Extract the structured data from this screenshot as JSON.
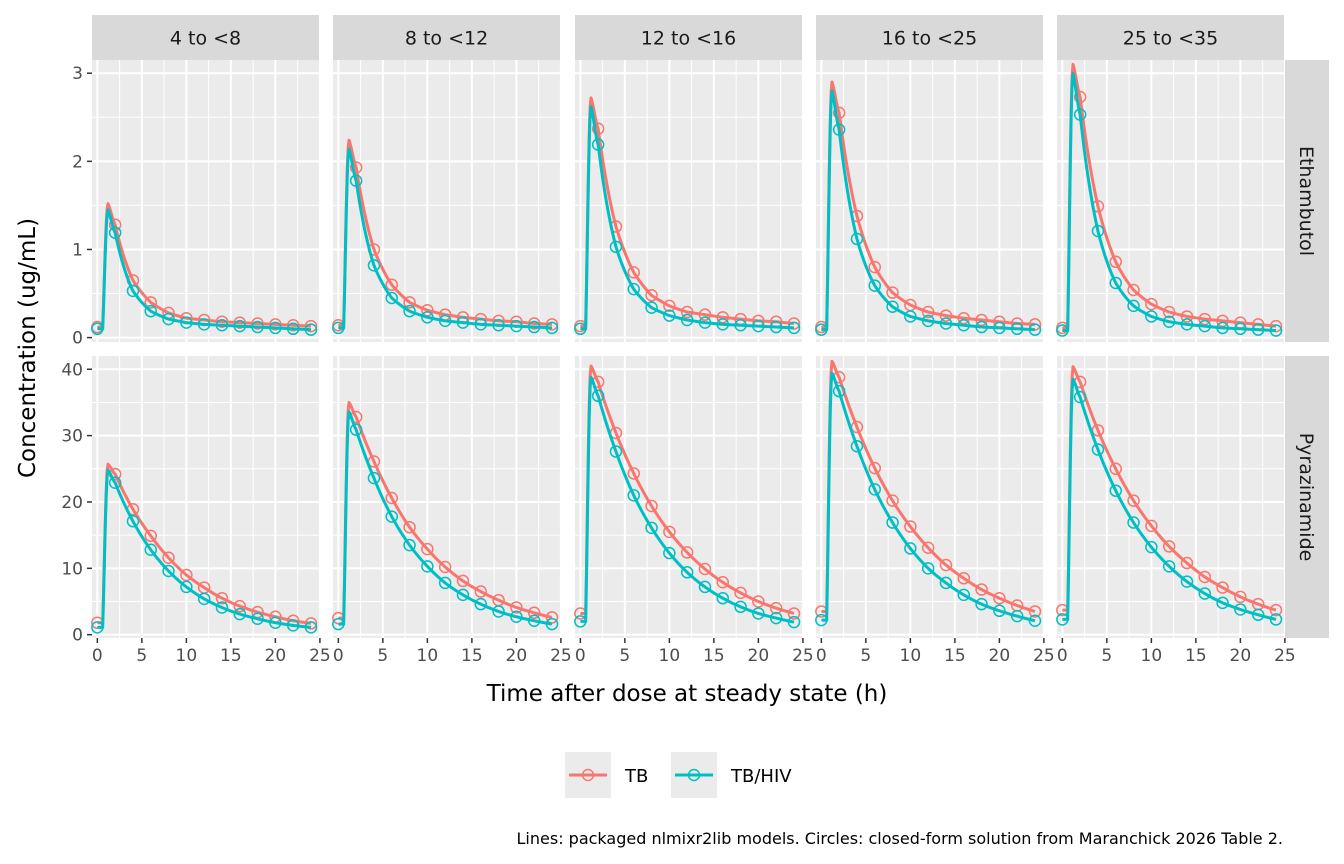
{
  "chart_data": {
    "type": "line",
    "xlabel": "Time after dose at steady state (h)",
    "ylabel": "Concentration (ug/mL)",
    "caption": "Lines: packaged nlmixr2lib models. Circles: closed-form solution from Maranchick 2026 Table 2.",
    "columns": [
      "4 to <8",
      "8 to <12",
      "12 to <16",
      "16 to <25",
      "25 to <35"
    ],
    "rows": [
      "Ethambutol",
      "Pyrazinamide"
    ],
    "xlim": [
      0,
      25
    ],
    "x_ticks": [
      0,
      5,
      10,
      15,
      20,
      25
    ],
    "y_ticks": {
      "Ethambutol": [
        0,
        1,
        2,
        3
      ],
      "Pyrazinamide": [
        0,
        10,
        20,
        30,
        40
      ]
    },
    "ylim": {
      "Ethambutol": [
        -0.05,
        3.15
      ],
      "Pyrazinamide": [
        -0.5,
        42
      ]
    },
    "grid": true,
    "legend_position": "bottom",
    "series_styles": [
      {
        "name": "TB",
        "color": "#F8766D"
      },
      {
        "name": "TB/HIV",
        "color": "#00BFC4"
      }
    ],
    "point_times": [
      0,
      2,
      4,
      6,
      8,
      10,
      12,
      14,
      16,
      18,
      20,
      22,
      24
    ],
    "panels": [
      {
        "row": "Ethambutol",
        "col": "4 to <8",
        "series": [
          {
            "name": "TB",
            "tmax": 1.2,
            "cmax": 1.52,
            "values": [
              0.12,
              1.28,
              0.65,
              0.4,
              0.28,
              0.22,
              0.2,
              0.18,
              0.17,
              0.16,
              0.15,
              0.14,
              0.13
            ]
          },
          {
            "name": "TB/HIV",
            "tmax": 1.2,
            "cmax": 1.45,
            "values": [
              0.1,
              1.19,
              0.53,
              0.3,
              0.21,
              0.17,
              0.15,
              0.14,
              0.13,
              0.12,
              0.11,
              0.1,
              0.09
            ]
          }
        ]
      },
      {
        "row": "Ethambutol",
        "col": "8 to <12",
        "series": [
          {
            "name": "TB",
            "tmax": 1.2,
            "cmax": 2.24,
            "values": [
              0.14,
              1.93,
              1.0,
              0.6,
              0.4,
              0.31,
              0.26,
              0.23,
              0.21,
              0.19,
              0.18,
              0.16,
              0.15
            ]
          },
          {
            "name": "TB/HIV",
            "tmax": 1.2,
            "cmax": 2.14,
            "values": [
              0.11,
              1.78,
              0.82,
              0.45,
              0.3,
              0.23,
              0.19,
              0.17,
              0.15,
              0.14,
              0.13,
              0.12,
              0.11
            ]
          }
        ]
      },
      {
        "row": "Ethambutol",
        "col": "12 to <16",
        "series": [
          {
            "name": "TB",
            "tmax": 1.2,
            "cmax": 2.72,
            "values": [
              0.13,
              2.37,
              1.26,
              0.74,
              0.48,
              0.36,
              0.29,
              0.26,
              0.23,
              0.21,
              0.19,
              0.18,
              0.16
            ]
          },
          {
            "name": "TB/HIV",
            "tmax": 1.2,
            "cmax": 2.62,
            "values": [
              0.1,
              2.19,
              1.03,
              0.55,
              0.34,
              0.25,
              0.2,
              0.17,
              0.15,
              0.14,
              0.13,
              0.12,
              0.11
            ]
          }
        ]
      },
      {
        "row": "Ethambutol",
        "col": "16 to <25",
        "series": [
          {
            "name": "TB",
            "tmax": 1.2,
            "cmax": 2.9,
            "values": [
              0.12,
              2.55,
              1.38,
              0.8,
              0.51,
              0.37,
              0.29,
              0.25,
              0.22,
              0.2,
              0.18,
              0.16,
              0.15
            ]
          },
          {
            "name": "TB/HIV",
            "tmax": 1.2,
            "cmax": 2.8,
            "values": [
              0.09,
              2.36,
              1.12,
              0.59,
              0.35,
              0.24,
              0.19,
              0.16,
              0.14,
              0.12,
              0.11,
              0.1,
              0.09
            ]
          }
        ]
      },
      {
        "row": "Ethambutol",
        "col": "25 to <35",
        "series": [
          {
            "name": "TB",
            "tmax": 1.2,
            "cmax": 3.1,
            "values": [
              0.11,
              2.73,
              1.49,
              0.86,
              0.54,
              0.38,
              0.29,
              0.24,
              0.21,
              0.19,
              0.17,
              0.15,
              0.13
            ]
          },
          {
            "name": "TB/HIV",
            "tmax": 1.2,
            "cmax": 3.0,
            "values": [
              0.08,
              2.53,
              1.21,
              0.62,
              0.36,
              0.24,
              0.18,
              0.15,
              0.13,
              0.11,
              0.1,
              0.09,
              0.08
            ]
          }
        ]
      },
      {
        "row": "Pyrazinamide",
        "col": "4 to <8",
        "series": [
          {
            "name": "TB",
            "tmax": 1.2,
            "cmax": 25.7,
            "values": [
              1.8,
              24.2,
              18.9,
              14.9,
              11.6,
              9.0,
              7.1,
              5.5,
              4.3,
              3.4,
              2.7,
              2.1,
              1.7
            ]
          },
          {
            "name": "TB/HIV",
            "tmax": 1.2,
            "cmax": 24.8,
            "values": [
              1.1,
              22.9,
              17.1,
              12.8,
              9.6,
              7.2,
              5.4,
              4.1,
              3.1,
              2.4,
              1.8,
              1.4,
              1.1
            ]
          }
        ]
      },
      {
        "row": "Pyrazinamide",
        "col": "8 to <12",
        "series": [
          {
            "name": "TB",
            "tmax": 1.2,
            "cmax": 35.0,
            "values": [
              2.5,
              32.8,
              26.1,
              20.6,
              16.2,
              12.9,
              10.2,
              8.1,
              6.5,
              5.2,
              4.1,
              3.3,
              2.6
            ]
          },
          {
            "name": "TB/HIV",
            "tmax": 1.2,
            "cmax": 33.6,
            "values": [
              1.6,
              30.9,
              23.6,
              17.8,
              13.5,
              10.3,
              7.8,
              6.0,
              4.6,
              3.5,
              2.7,
              2.1,
              1.6
            ]
          }
        ]
      },
      {
        "row": "Pyrazinamide",
        "col": "12 to <16",
        "series": [
          {
            "name": "TB",
            "tmax": 1.2,
            "cmax": 40.5,
            "values": [
              3.2,
              38.1,
              30.4,
              24.3,
              19.4,
              15.5,
              12.4,
              9.9,
              7.9,
              6.3,
              5.0,
              4.0,
              3.2
            ]
          },
          {
            "name": "TB/HIV",
            "tmax": 1.2,
            "cmax": 38.8,
            "values": [
              2.0,
              36.0,
              27.6,
              21.0,
              16.1,
              12.3,
              9.4,
              7.2,
              5.5,
              4.2,
              3.2,
              2.5,
              1.9
            ]
          }
        ]
      },
      {
        "row": "Pyrazinamide",
        "col": "16 to <25",
        "series": [
          {
            "name": "TB",
            "tmax": 1.2,
            "cmax": 41.2,
            "values": [
              3.5,
              38.8,
              31.3,
              25.1,
              20.2,
              16.3,
              13.1,
              10.5,
              8.5,
              6.8,
              5.5,
              4.4,
              3.5
            ]
          },
          {
            "name": "TB/HIV",
            "tmax": 1.2,
            "cmax": 39.4,
            "values": [
              2.2,
              36.7,
              28.4,
              21.9,
              16.9,
              13.0,
              10.0,
              7.8,
              6.0,
              4.6,
              3.6,
              2.8,
              2.1
            ]
          }
        ]
      },
      {
        "row": "Pyrazinamide",
        "col": "25 to <35",
        "series": [
          {
            "name": "TB",
            "tmax": 1.2,
            "cmax": 40.4,
            "values": [
              3.7,
              38.1,
              30.8,
              25.0,
              20.2,
              16.4,
              13.3,
              10.8,
              8.7,
              7.1,
              5.7,
              4.6,
              3.7
            ]
          },
          {
            "name": "TB/HIV",
            "tmax": 1.2,
            "cmax": 38.5,
            "values": [
              2.3,
              35.8,
              27.9,
              21.7,
              16.9,
              13.2,
              10.3,
              8.0,
              6.2,
              4.8,
              3.8,
              3.0,
              2.3
            ]
          }
        ]
      }
    ]
  }
}
